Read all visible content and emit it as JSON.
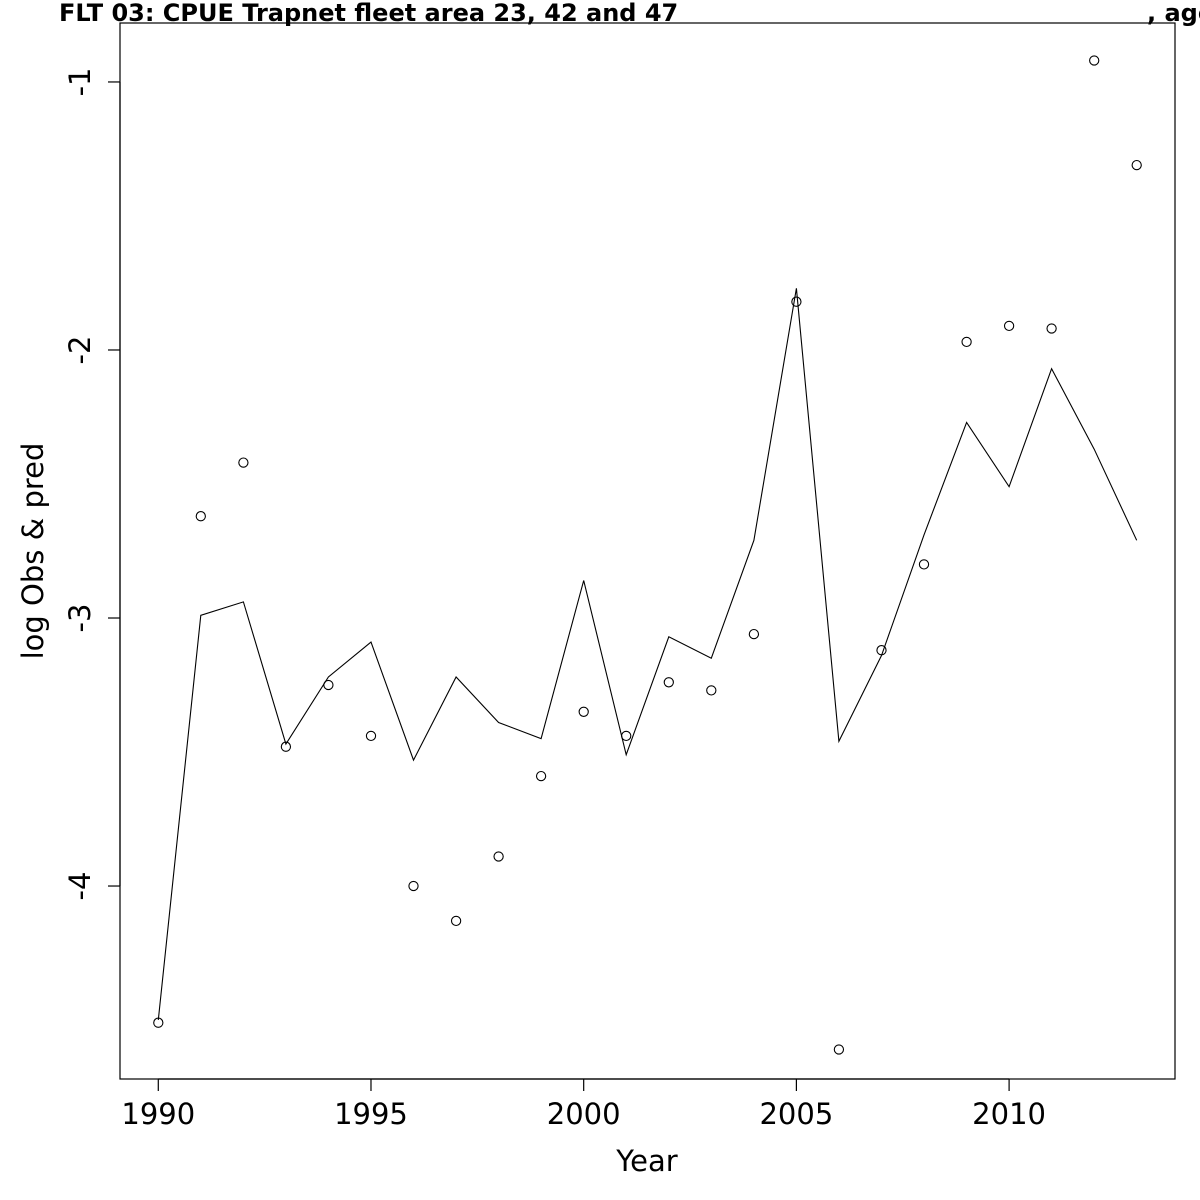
{
  "chart_data": {
    "type": "line",
    "title_left": "FLT 03: CPUE Trapnet fleet area 23, 42 and 47",
    "title_right": ", age",
    "xlabel": "Year",
    "ylabel": "log Obs & pred",
    "xlim": [
      1989.1,
      2013.9
    ],
    "ylim": [
      -4.72,
      -0.78
    ],
    "x_ticks": [
      1990,
      1995,
      2000,
      2005,
      2010
    ],
    "y_ticks": [
      -4,
      -3,
      -2,
      -1
    ],
    "grid": false,
    "legend": "none",
    "series": [
      {
        "kind": "points",
        "x": [
          1990,
          1991,
          1992,
          1993,
          1994,
          1995,
          1996,
          1997,
          1998,
          1999,
          2000,
          2001,
          2002,
          2003,
          2004,
          2005,
          2006,
          2007,
          2008,
          2009,
          2010,
          2011,
          2012,
          2013
        ],
        "values": [
          -4.51,
          -2.62,
          -2.42,
          -3.48,
          -3.25,
          -3.44,
          -4.0,
          -4.13,
          -3.89,
          -3.59,
          -3.35,
          -3.44,
          -3.24,
          -3.27,
          -3.06,
          -1.82,
          -4.61,
          -3.12,
          -2.8,
          -1.97,
          -1.91,
          -1.92,
          -0.92,
          -1.31
        ]
      },
      {
        "kind": "line",
        "x": [
          1990,
          1991,
          1992,
          1993,
          1994,
          1995,
          1996,
          1997,
          1998,
          1999,
          2000,
          2001,
          2002,
          2003,
          2004,
          2005,
          2006,
          2007,
          2008,
          2009,
          2010,
          2011,
          2012,
          2013
        ],
        "values": [
          -4.5,
          -2.99,
          -2.94,
          -3.47,
          -3.22,
          -3.09,
          -3.53,
          -3.22,
          -3.39,
          -3.45,
          -2.86,
          -3.51,
          -3.07,
          -3.15,
          -2.71,
          -1.77,
          -3.46,
          -3.14,
          -2.69,
          -2.27,
          -2.51,
          -2.07,
          -2.37,
          -2.71
        ]
      }
    ]
  }
}
